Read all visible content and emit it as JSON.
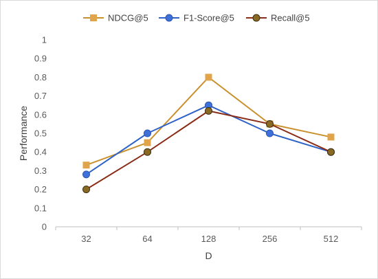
{
  "chart_data": {
    "type": "line",
    "title": "",
    "xlabel": "D",
    "ylabel": "Performance",
    "categories": [
      "32",
      "64",
      "128",
      "256",
      "512"
    ],
    "ylim": [
      0,
      1
    ],
    "yticks": [
      "0",
      "0.1",
      "0.2",
      "0.3",
      "0.4",
      "0.5",
      "0.6",
      "0.7",
      "0.8",
      "0.9",
      "1"
    ],
    "grid": false,
    "legend_position": "top",
    "series": [
      {
        "name": "NDCG@5",
        "values": [
          0.33,
          0.45,
          0.8,
          0.55,
          0.48
        ],
        "color": "#c9912e",
        "marker": "square"
      },
      {
        "name": "F1-Score@5",
        "values": [
          0.28,
          0.5,
          0.65,
          0.5,
          0.4
        ],
        "color": "#2e62c9",
        "marker": "circle"
      },
      {
        "name": "Recall@5",
        "values": [
          0.2,
          0.4,
          0.62,
          0.55,
          0.4
        ],
        "color": "#8a2d17",
        "marker": "circle-olive"
      }
    ]
  }
}
